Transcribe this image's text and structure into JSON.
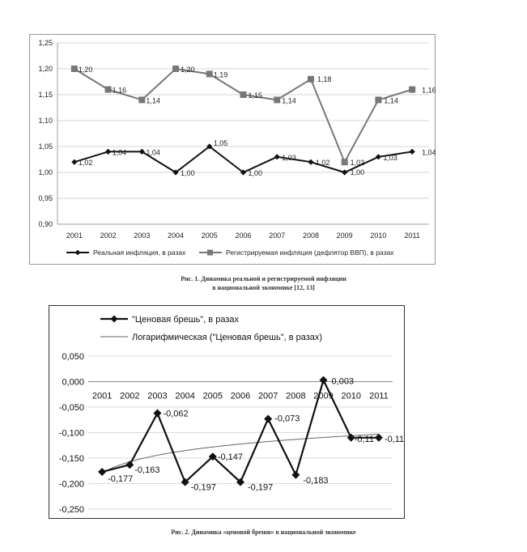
{
  "chart_data": [
    {
      "type": "line",
      "categories": [
        "2001",
        "2002",
        "2003",
        "2004",
        "2005",
        "2006",
        "2007",
        "2008",
        "2009",
        "2010",
        "2011"
      ],
      "series": [
        {
          "name": "Реальная инфляция, в разах",
          "values": [
            1.02,
            1.04,
            1.04,
            1.0,
            1.05,
            1.0,
            1.03,
            1.02,
            1.0,
            1.03,
            1.04
          ],
          "labels": [
            "1,02",
            "1,04",
            "1,04",
            "1,00",
            "1,05",
            "1,00",
            "1,03",
            "1,02",
            "1,00",
            "1,03",
            "1,04"
          ],
          "color": "#111111",
          "marker": "diamond"
        },
        {
          "name": "Регистрируемая инфляция (дефлятор ВВП), в разах",
          "values": [
            1.2,
            1.16,
            1.14,
            1.2,
            1.19,
            1.15,
            1.14,
            1.18,
            1.02,
            1.14,
            1.16
          ],
          "labels": [
            "1,20",
            "1,16",
            "1,14",
            "1,20",
            "1,19",
            "1,15",
            "1,14",
            "1,18",
            "1,02",
            "1,14",
            "1,16"
          ],
          "color": "#777777",
          "marker": "square"
        }
      ],
      "yticks": [
        "1,25",
        "1,20",
        "1,15",
        "1,10",
        "1,05",
        "1,00",
        "0,95",
        "0,90"
      ],
      "ylim": [
        0.9,
        1.25
      ],
      "grid": true,
      "legend_position": "bottom",
      "caption": [
        "Рис. 1. Динамика реальной и регистрируемой инфляции",
        "в национальной экономике [12, 13]"
      ]
    },
    {
      "type": "line",
      "categories": [
        "2001",
        "2002",
        "2003",
        "2004",
        "2005",
        "2006",
        "2007",
        "2008",
        "2009",
        "2010",
        "2011"
      ],
      "series": [
        {
          "name": "\"Ценовая брешь\", в разах",
          "values": [
            -0.177,
            -0.163,
            -0.062,
            -0.197,
            -0.147,
            -0.197,
            -0.073,
            -0.183,
            0.003,
            -0.11,
            -0.11
          ],
          "labels": [
            "-0,177",
            "-0,163",
            "-0,062",
            "-0,197",
            "-0,147",
            "-0,197",
            "-0,073",
            "-0,183",
            "0,003",
            "-0,11",
            "-0,11"
          ],
          "color": "#111111",
          "marker": "diamond"
        },
        {
          "name": "Логарифмическая (\"Ценовая брешь\", в разах)",
          "type": "trendline",
          "color": "#666666"
        }
      ],
      "yticks": [
        "0,050",
        "0,000",
        "-0,050",
        "-0,100",
        "-0,150",
        "-0,200",
        "-0,250"
      ],
      "ylim": [
        -0.25,
        0.05
      ],
      "grid": true,
      "legend_position": "top",
      "caption": [
        "Рис. 2. Динамика «ценовой бреши» в национальной экономике"
      ]
    }
  ]
}
